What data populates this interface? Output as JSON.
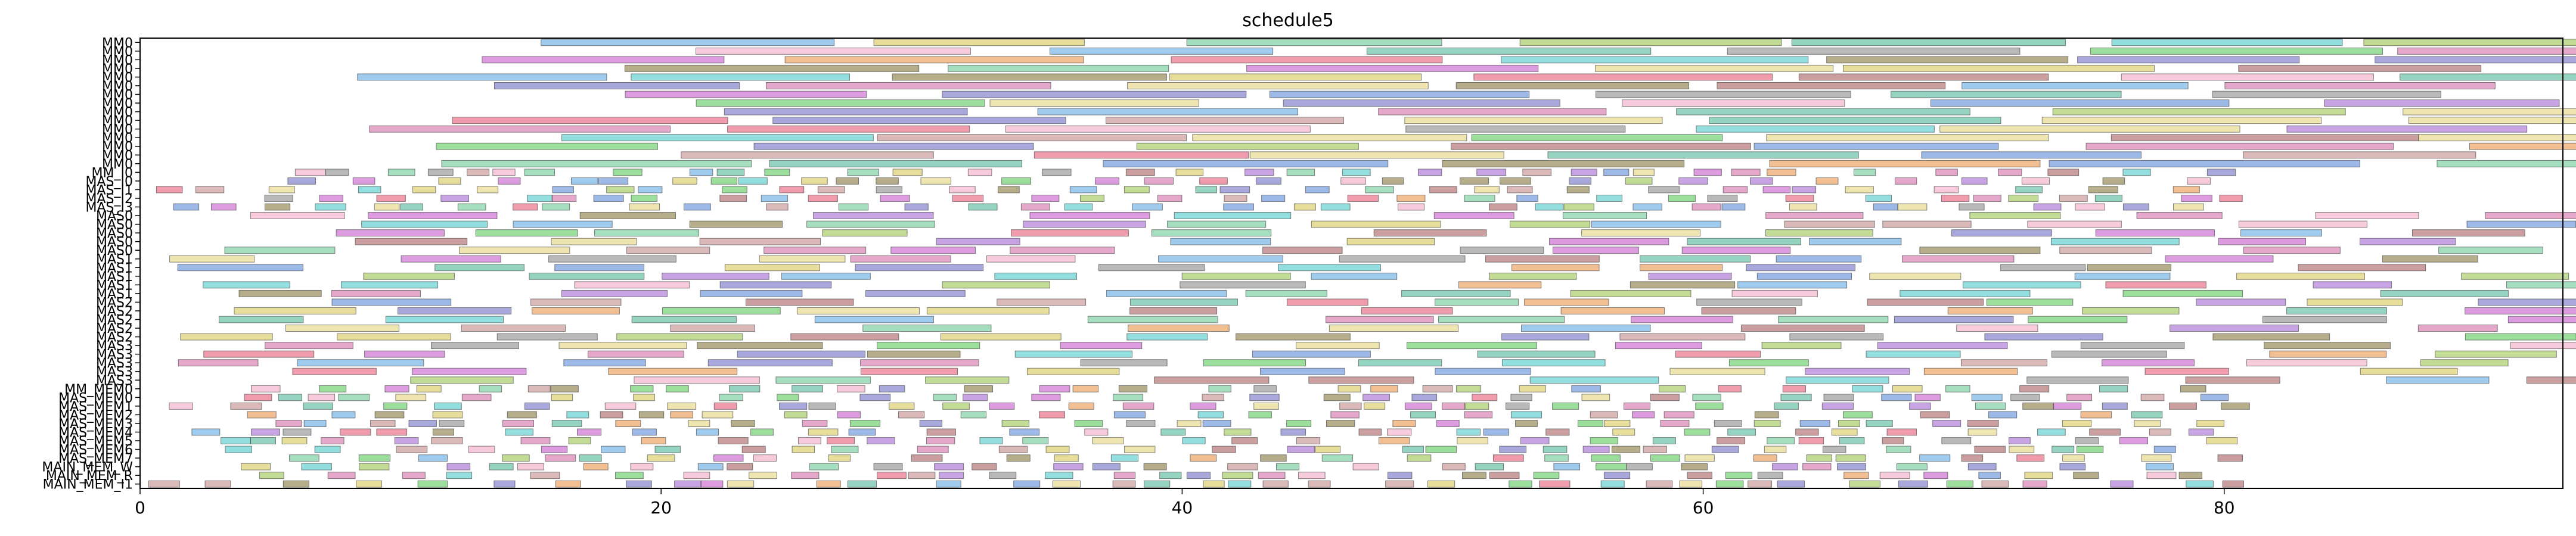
{
  "chart_data": {
    "type": "bar",
    "orientation": "horizontal",
    "title": "schedule5",
    "xlabel": "",
    "ylabel": "",
    "xlim": [
      0,
      93
    ],
    "x_ticks": [
      0,
      20,
      40,
      60,
      80
    ],
    "grid": false,
    "legend": "none",
    "rows": [
      "MM0",
      "MM0",
      "MM0",
      "MM0",
      "MM0",
      "MM0",
      "MM0",
      "MM0",
      "MM0",
      "MM0",
      "MM0",
      "MM0",
      "MM0",
      "MM0",
      "MM0",
      "MM_I0",
      "MAS_I0",
      "MAS_I1",
      "MAS_I2",
      "MAS_I3",
      "MAS0",
      "MAS0",
      "MAS0",
      "MAS0",
      "MAS0",
      "MAS1",
      "MAS1",
      "MAS1",
      "MAS1",
      "MAS1",
      "MAS2",
      "MAS2",
      "MAS2",
      "MAS2",
      "MAS2",
      "MAS3",
      "MAS3",
      "MAS3",
      "MAS3",
      "MAS3",
      "MM_MEM0",
      "MAS_MEM0",
      "MAS_MEM1",
      "MAS_MEM2",
      "MAS_MEM3",
      "MAS_MEM4",
      "MAS_MEM5",
      "MAS_MEM6",
      "MAS_MEM7",
      "MAIN_MEM_W",
      "MAIN_MEM_R",
      "MAIN_MEM_I1"
    ],
    "palette": [
      "#4a7fd4",
      "#e44a6a",
      "#5cc48a",
      "#d4c24a",
      "#9b59d0",
      "#e88a3a",
      "#3ac4c4",
      "#7a6a2a",
      "#c04ac4",
      "#4ac44a",
      "#a05050",
      "#50a0e0",
      "#e0d070",
      "#6060c0",
      "#c08080",
      "#40b090",
      "#d060a0",
      "#90c040",
      "#808080",
      "#f0a0c0"
    ],
    "seed": 5,
    "bar_height": 0.75,
    "opacity": 0.55
  }
}
